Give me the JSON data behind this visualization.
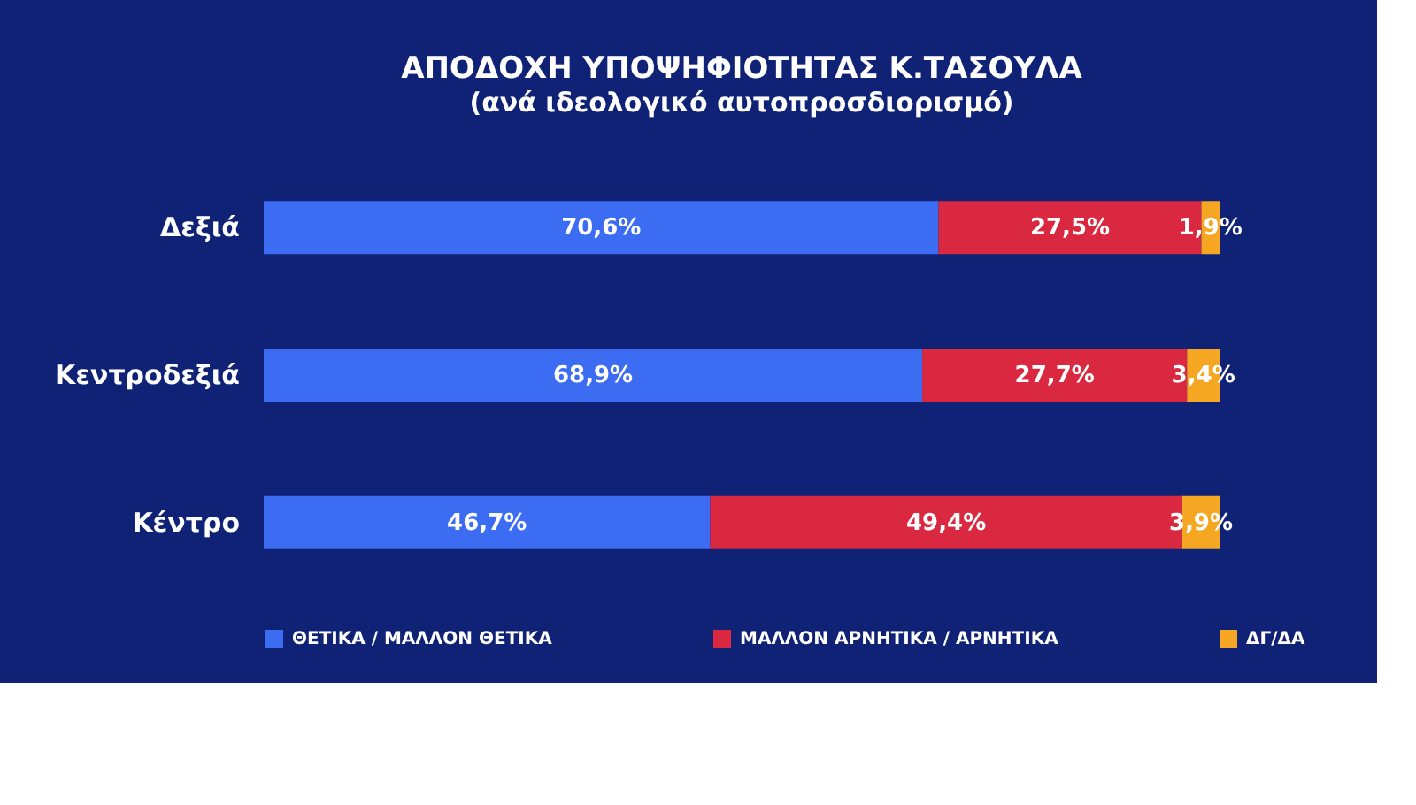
{
  "chart_data": {
    "type": "bar",
    "orientation": "horizontal",
    "stacked": true,
    "title": "ΑΠΟΔΟΧΗ ΥΠΟΨΗΦΙΟΤΗΤΑΣ Κ.ΤΑΣΟΥΛΑ",
    "subtitle": "(ανά ιδεολογικό αυτοπροσδιορισμό)",
    "categories": [
      "Δεξιά",
      "Κεντροδεξιά",
      "Κέντρο"
    ],
    "legend": "bottom",
    "series": [
      {
        "name": "ΘΕΤΙΚΑ / ΜΑΛΛΟΝ ΘΕΤΙΚΑ",
        "color": "#3b6cf2",
        "values": [
          70.6,
          68.9,
          46.7
        ],
        "value_labels": [
          "70,6%",
          "68,9%",
          "46,7%"
        ]
      },
      {
        "name": "ΜΑΛΛΟΝ ΑΡΝΗΤΙΚΑ / ΑΡΝΗΤΙΚΑ",
        "color": "#d9283f",
        "values": [
          27.5,
          27.7,
          49.4
        ],
        "value_labels": [
          "27,5%",
          "27,7%",
          "49,4%"
        ]
      },
      {
        "name": "ΔΓ/ΔΑ",
        "color": "#f5a623",
        "values": [
          1.9,
          3.4,
          3.9
        ],
        "value_labels": [
          "1,9%",
          "3,4%",
          "3,9%"
        ]
      }
    ]
  }
}
